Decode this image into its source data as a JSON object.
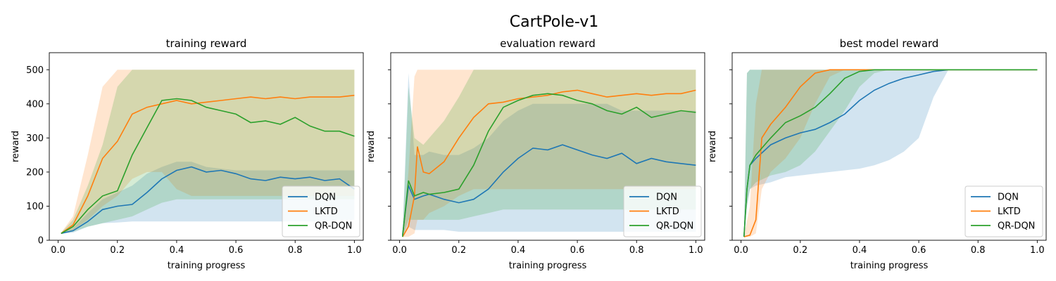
{
  "figure": {
    "suptitle": "CartPole-v1"
  },
  "chart_data": [
    {
      "type": "line",
      "title": "training reward",
      "xlabel": "training progress",
      "ylabel": "reward",
      "xlim": [
        -0.03,
        1.03
      ],
      "ylim": [
        0,
        550
      ],
      "xticks": [
        0.0,
        0.2,
        0.4,
        0.6,
        0.8,
        1.0
      ],
      "xtick_labels": [
        "0.0",
        "0.2",
        "0.4",
        "0.6",
        "0.8",
        "1.0"
      ],
      "yticks": [
        0,
        100,
        200,
        300,
        400,
        500
      ],
      "ytick_labels": [
        "0",
        "100",
        "200",
        "300",
        "400",
        "500"
      ],
      "show_ytick_labels": true,
      "legend": {
        "position": "lower-right",
        "entries": [
          "DQN",
          "LKTD",
          "QR-DQN"
        ]
      },
      "series": [
        {
          "name": "DQN",
          "color": "#1f77b4",
          "x": [
            0.01,
            0.05,
            0.1,
            0.15,
            0.2,
            0.25,
            0.3,
            0.35,
            0.4,
            0.45,
            0.5,
            0.55,
            0.6,
            0.65,
            0.7,
            0.75,
            0.8,
            0.85,
            0.9,
            0.95,
            1.0
          ],
          "mean": [
            20,
            28,
            55,
            90,
            100,
            105,
            140,
            180,
            205,
            215,
            200,
            205,
            195,
            180,
            175,
            185,
            180,
            185,
            175,
            180,
            150
          ],
          "lower": [
            20,
            22,
            40,
            50,
            52,
            55,
            55,
            55,
            55,
            55,
            55,
            55,
            55,
            55,
            55,
            55,
            55,
            55,
            55,
            60,
            60
          ],
          "upper": [
            22,
            35,
            80,
            120,
            140,
            160,
            195,
            215,
            230,
            230,
            215,
            210,
            205,
            205,
            205,
            205,
            205,
            205,
            205,
            205,
            205
          ]
        },
        {
          "name": "LKTD",
          "color": "#ff7f0e",
          "x": [
            0.01,
            0.05,
            0.1,
            0.15,
            0.2,
            0.25,
            0.3,
            0.35,
            0.4,
            0.45,
            0.5,
            0.55,
            0.6,
            0.65,
            0.7,
            0.75,
            0.8,
            0.85,
            0.9,
            0.95,
            1.0
          ],
          "mean": [
            20,
            45,
            130,
            240,
            290,
            370,
            390,
            400,
            410,
            400,
            405,
            410,
            415,
            420,
            415,
            420,
            415,
            420,
            420,
            420,
            425
          ],
          "lower": [
            20,
            30,
            60,
            100,
            130,
            180,
            200,
            200,
            150,
            130,
            130,
            130,
            130,
            130,
            130,
            130,
            130,
            130,
            130,
            130,
            130
          ],
          "upper": [
            22,
            70,
            250,
            450,
            500,
            500,
            500,
            500,
            500,
            500,
            500,
            500,
            500,
            500,
            500,
            500,
            500,
            500,
            500,
            500,
            500
          ]
        },
        {
          "name": "QR-DQN",
          "color": "#2ca02c",
          "x": [
            0.01,
            0.05,
            0.1,
            0.15,
            0.2,
            0.25,
            0.3,
            0.35,
            0.4,
            0.45,
            0.5,
            0.55,
            0.6,
            0.65,
            0.7,
            0.75,
            0.8,
            0.85,
            0.9,
            0.95,
            1.0
          ],
          "mean": [
            20,
            40,
            90,
            130,
            145,
            250,
            330,
            410,
            415,
            410,
            390,
            380,
            370,
            345,
            350,
            340,
            360,
            335,
            320,
            320,
            305
          ],
          "lower": [
            20,
            25,
            40,
            50,
            60,
            70,
            90,
            110,
            120,
            120,
            120,
            120,
            120,
            120,
            120,
            120,
            120,
            120,
            120,
            120,
            120
          ],
          "upper": [
            22,
            60,
            160,
            280,
            450,
            500,
            500,
            500,
            500,
            500,
            500,
            500,
            500,
            500,
            500,
            500,
            500,
            500,
            500,
            500,
            500
          ]
        }
      ]
    },
    {
      "type": "line",
      "title": "evaluation reward",
      "xlabel": "training progress",
      "ylabel": "reward",
      "xlim": [
        -0.03,
        1.03
      ],
      "ylim": [
        0,
        550
      ],
      "xticks": [
        0.0,
        0.2,
        0.4,
        0.6,
        0.8,
        1.0
      ],
      "xtick_labels": [
        "0.0",
        "0.2",
        "0.4",
        "0.6",
        "0.8",
        "1.0"
      ],
      "yticks": [
        0,
        100,
        200,
        300,
        400,
        500
      ],
      "ytick_labels": [
        "0",
        "100",
        "200",
        "300",
        "400",
        "500"
      ],
      "show_ytick_labels": false,
      "legend": {
        "position": "lower-right",
        "entries": [
          "DQN",
          "LKTD",
          "QR-DQN"
        ]
      },
      "series": [
        {
          "name": "DQN",
          "color": "#1f77b4",
          "x": [
            0.01,
            0.03,
            0.05,
            0.08,
            0.1,
            0.15,
            0.2,
            0.25,
            0.3,
            0.35,
            0.4,
            0.45,
            0.5,
            0.55,
            0.6,
            0.65,
            0.7,
            0.75,
            0.8,
            0.85,
            0.9,
            0.95,
            1.0
          ],
          "mean": [
            15,
            160,
            120,
            130,
            135,
            120,
            110,
            120,
            150,
            200,
            240,
            270,
            265,
            280,
            265,
            250,
            240,
            255,
            225,
            240,
            230,
            225,
            220
          ],
          "lower": [
            10,
            40,
            30,
            30,
            30,
            30,
            25,
            25,
            25,
            25,
            25,
            25,
            25,
            25,
            25,
            25,
            25,
            25,
            25,
            25,
            25,
            25,
            25
          ],
          "upper": [
            15,
            490,
            250,
            250,
            260,
            250,
            250,
            270,
            300,
            350,
            380,
            400,
            400,
            400,
            400,
            400,
            400,
            380,
            380,
            380,
            380,
            380,
            380
          ]
        },
        {
          "name": "LKTD",
          "color": "#ff7f0e",
          "x": [
            0.01,
            0.03,
            0.05,
            0.06,
            0.08,
            0.1,
            0.15,
            0.2,
            0.25,
            0.3,
            0.35,
            0.4,
            0.45,
            0.5,
            0.55,
            0.6,
            0.65,
            0.7,
            0.75,
            0.8,
            0.85,
            0.9,
            0.95,
            1.0
          ],
          "mean": [
            10,
            40,
            130,
            275,
            200,
            195,
            230,
            300,
            360,
            400,
            405,
            415,
            420,
            425,
            435,
            440,
            430,
            420,
            425,
            430,
            425,
            430,
            430,
            440
          ],
          "lower": [
            10,
            10,
            20,
            60,
            60,
            80,
            100,
            130,
            150,
            150,
            150,
            150,
            150,
            150,
            150,
            150,
            150,
            150,
            150,
            150,
            150,
            150,
            150,
            150
          ],
          "upper": [
            12,
            200,
            480,
            500,
            500,
            500,
            500,
            500,
            500,
            500,
            500,
            500,
            500,
            500,
            500,
            500,
            500,
            500,
            500,
            500,
            500,
            500,
            500,
            500
          ]
        },
        {
          "name": "QR-DQN",
          "color": "#2ca02c",
          "x": [
            0.01,
            0.03,
            0.05,
            0.08,
            0.1,
            0.15,
            0.2,
            0.25,
            0.3,
            0.35,
            0.4,
            0.45,
            0.5,
            0.55,
            0.6,
            0.65,
            0.7,
            0.75,
            0.8,
            0.85,
            0.9,
            0.95,
            1.0
          ],
          "mean": [
            10,
            175,
            130,
            140,
            135,
            140,
            150,
            220,
            320,
            390,
            410,
            425,
            430,
            425,
            410,
            400,
            380,
            370,
            390,
            360,
            370,
            380,
            375
          ],
          "lower": [
            10,
            60,
            60,
            60,
            60,
            60,
            60,
            70,
            80,
            90,
            90,
            90,
            90,
            90,
            90,
            90,
            90,
            90,
            90,
            90,
            90,
            90,
            90
          ],
          "upper": [
            12,
            450,
            300,
            280,
            300,
            350,
            420,
            500,
            500,
            500,
            500,
            500,
            500,
            500,
            500,
            500,
            500,
            500,
            500,
            500,
            500,
            500,
            500
          ]
        }
      ]
    },
    {
      "type": "line",
      "title": "best model reward",
      "xlabel": "training progress",
      "ylabel": "reward",
      "xlim": [
        -0.03,
        1.03
      ],
      "ylim": [
        0,
        550
      ],
      "xticks": [
        0.0,
        0.2,
        0.4,
        0.6,
        0.8,
        1.0
      ],
      "xtick_labels": [
        "0.0",
        "0.2",
        "0.4",
        "0.6",
        "0.8",
        "1.0"
      ],
      "yticks": [
        0,
        100,
        200,
        300,
        400,
        500
      ],
      "ytick_labels": [
        "0",
        "100",
        "200",
        "300",
        "400",
        "500"
      ],
      "show_ytick_labels": false,
      "legend": {
        "position": "lower-right",
        "entries": [
          "DQN",
          "LKTD",
          "QR-DQN"
        ]
      },
      "series": [
        {
          "name": "DQN",
          "color": "#1f77b4",
          "x": [
            0.01,
            0.02,
            0.03,
            0.05,
            0.1,
            0.15,
            0.2,
            0.25,
            0.3,
            0.35,
            0.4,
            0.45,
            0.5,
            0.55,
            0.6,
            0.65,
            0.7,
            1.0
          ],
          "mean": [
            10,
            150,
            220,
            240,
            280,
            300,
            315,
            325,
            345,
            370,
            410,
            440,
            460,
            475,
            485,
            495,
            500,
            500
          ],
          "lower": [
            10,
            100,
            150,
            160,
            170,
            185,
            190,
            195,
            200,
            205,
            210,
            220,
            235,
            260,
            300,
            420,
            500,
            500
          ],
          "upper": [
            12,
            490,
            500,
            500,
            500,
            500,
            500,
            500,
            500,
            500,
            500,
            500,
            500,
            500,
            500,
            500,
            500,
            500
          ]
        },
        {
          "name": "LKTD",
          "color": "#ff7f0e",
          "x": [
            0.01,
            0.03,
            0.05,
            0.07,
            0.1,
            0.15,
            0.2,
            0.25,
            0.3,
            0.35,
            0.4,
            0.45,
            0.5,
            1.0
          ],
          "mean": [
            10,
            15,
            60,
            300,
            340,
            390,
            450,
            490,
            500,
            500,
            500,
            500,
            500,
            500
          ],
          "lower": [
            10,
            10,
            20,
            150,
            200,
            240,
            300,
            400,
            480,
            500,
            500,
            500,
            500,
            500
          ],
          "upper": [
            12,
            100,
            400,
            500,
            500,
            500,
            500,
            500,
            500,
            500,
            500,
            500,
            500,
            500
          ]
        },
        {
          "name": "QR-DQN",
          "color": "#2ca02c",
          "x": [
            0.01,
            0.02,
            0.03,
            0.05,
            0.1,
            0.15,
            0.2,
            0.25,
            0.3,
            0.35,
            0.4,
            0.45,
            0.5,
            0.55,
            1.0
          ],
          "mean": [
            10,
            150,
            220,
            250,
            300,
            345,
            365,
            390,
            430,
            475,
            495,
            500,
            500,
            500,
            500
          ],
          "lower": [
            10,
            100,
            150,
            170,
            190,
            200,
            220,
            260,
            320,
            380,
            450,
            490,
            500,
            500,
            500
          ],
          "upper": [
            12,
            490,
            500,
            500,
            500,
            500,
            500,
            500,
            500,
            500,
            500,
            500,
            500,
            500,
            500
          ]
        }
      ]
    }
  ]
}
